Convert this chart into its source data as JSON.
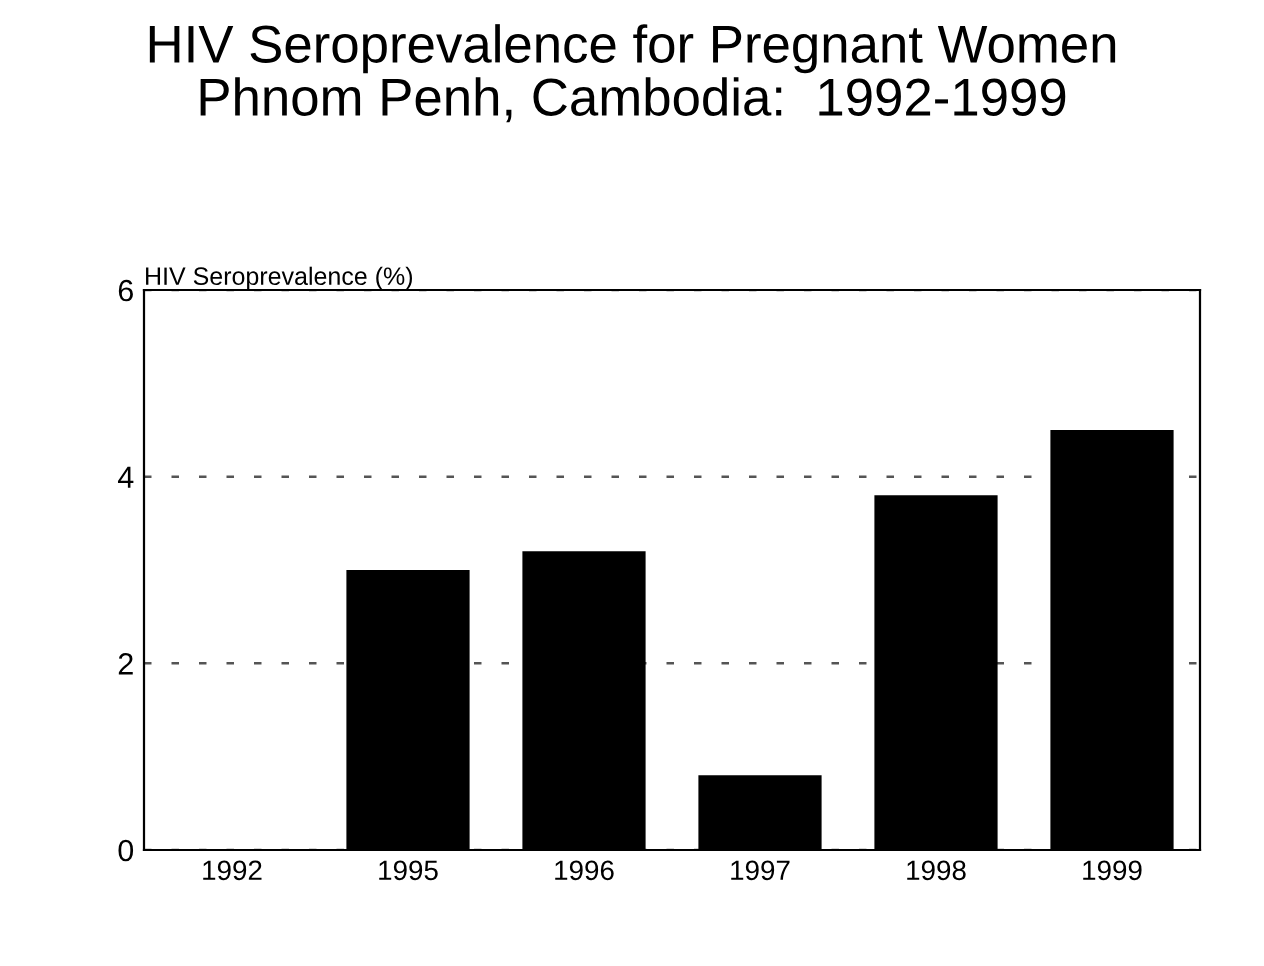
{
  "chart_data": {
    "type": "bar",
    "title": "HIV Seroprevalence for Pregnant Women\nPhnom Penh, Cambodia:  1992-1999",
    "ylabel": "HIV Seroprevalence (%)",
    "categories": [
      "1992",
      "1995",
      "1996",
      "1997",
      "1998",
      "1999"
    ],
    "values": [
      0,
      3.0,
      3.2,
      0.8,
      3.8,
      4.5
    ],
    "color": "#000000",
    "ylim": [
      0,
      6
    ],
    "yticks": [
      0,
      2,
      4,
      6
    ],
    "grid": "y",
    "legend": false
  }
}
